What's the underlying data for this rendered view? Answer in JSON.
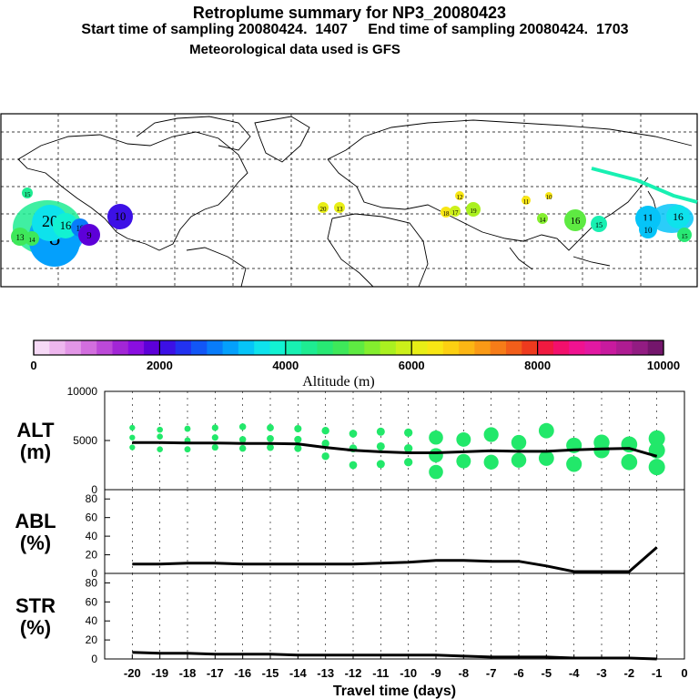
{
  "header": {
    "title": "Retroplume summary for NP3_20080423",
    "line2": "Start time of sampling 20080424.  1407     End time of sampling 20080424.  1703",
    "line3": "Meteorological data used is GFS"
  },
  "colorbar": {
    "colors": [
      "#f6d9f6",
      "#eeb6ee",
      "#e296e6",
      "#d26ede",
      "#bc49d8",
      "#a226d6",
      "#8a0ee0",
      "#5d00d8",
      "#3c10e6",
      "#2232f0",
      "#1256f6",
      "#087cfa",
      "#04a0fc",
      "#06c4f8",
      "#0ee2ec",
      "#12f2d2",
      "#18f0b2",
      "#1eec92",
      "#28e874",
      "#3ee85a",
      "#5eea42",
      "#84ee2e",
      "#aaf020",
      "#ccf01a",
      "#e8ee16",
      "#f8e614",
      "#fcd012",
      "#fcb614",
      "#fa9a16",
      "#f67c18",
      "#f25e1a",
      "#ee3a1e",
      "#f01a40",
      "#f2106c",
      "#f01290",
      "#e218a2",
      "#c81a9e",
      "#ae1c92",
      "#921c82",
      "#74166c"
    ],
    "tick_labels": [
      "0",
      "2000",
      "4000",
      "6000",
      "8000",
      "10000"
    ],
    "axis_label": "Altitude (m)"
  },
  "map": {
    "markers": [
      {
        "label": "15",
        "color": "#1eec92"
      },
      {
        "label": "8",
        "color": "#04a0fc"
      },
      {
        "label": "20",
        "color": "#0ee2ec"
      },
      {
        "label": "16",
        "color": "#12f2d2"
      },
      {
        "label": "19",
        "color": "#087cfa"
      },
      {
        "label": "9",
        "color": "#5d00d8"
      },
      {
        "label": "10",
        "color": "#3c10e6"
      },
      {
        "label": "13",
        "color": "#3ee85a"
      },
      {
        "label": "14",
        "color": "#3ee85a"
      },
      {
        "label": "20",
        "color": "#e8ee16"
      },
      {
        "label": "13",
        "color": "#e8ee16"
      },
      {
        "label": "18",
        "color": "#f8e614"
      },
      {
        "label": "17",
        "color": "#ccf01a"
      },
      {
        "label": "19",
        "color": "#aaf020"
      },
      {
        "label": "12",
        "color": "#f8e614"
      },
      {
        "label": "11",
        "color": "#f8e614"
      },
      {
        "label": "10",
        "color": "#f8e614"
      },
      {
        "label": "14",
        "color": "#84ee2e"
      },
      {
        "label": "16",
        "color": "#5eea42"
      },
      {
        "label": "15",
        "color": "#18f0b2"
      },
      {
        "label": "11",
        "color": "#06c4f8"
      },
      {
        "label": "10",
        "color": "#06c4f8"
      },
      {
        "label": "16",
        "color": "#0ee2ec"
      },
      {
        "label": "15",
        "color": "#28e874"
      }
    ]
  },
  "chart_data": [
    {
      "type": "scatter+line",
      "panel": "ALT",
      "ylabel": "ALT\n(m)",
      "ylim": [
        0,
        10000
      ],
      "yticks": [
        0,
        5000,
        10000
      ],
      "x": [
        -20,
        -19,
        -18,
        -17,
        -16,
        -15,
        -14,
        -13,
        -12,
        -11,
        -10,
        -9,
        -8,
        -7,
        -6,
        -5,
        -4,
        -3,
        -2,
        -1
      ],
      "line_values": [
        4800,
        4800,
        4750,
        4750,
        4700,
        4700,
        4650,
        4300,
        4000,
        3850,
        3750,
        3750,
        3850,
        3950,
        3900,
        3900,
        4050,
        4150,
        4200,
        3400
      ],
      "scatter": [
        {
          "x": -20,
          "y": 6300
        },
        {
          "x": -20,
          "y": 5300
        },
        {
          "x": -20,
          "y": 4300
        },
        {
          "x": -19,
          "y": 6100
        },
        {
          "x": -19,
          "y": 5400
        },
        {
          "x": -19,
          "y": 4100
        },
        {
          "x": -18,
          "y": 6200
        },
        {
          "x": -18,
          "y": 5000
        },
        {
          "x": -18,
          "y": 4100
        },
        {
          "x": -17,
          "y": 6300
        },
        {
          "x": -17,
          "y": 5300
        },
        {
          "x": -17,
          "y": 4300
        },
        {
          "x": -16,
          "y": 6400
        },
        {
          "x": -16,
          "y": 5100
        },
        {
          "x": -16,
          "y": 4200
        },
        {
          "x": -15,
          "y": 6300
        },
        {
          "x": -15,
          "y": 5200
        },
        {
          "x": -15,
          "y": 4300
        },
        {
          "x": -14,
          "y": 6200
        },
        {
          "x": -14,
          "y": 5100
        },
        {
          "x": -14,
          "y": 4200
        },
        {
          "x": -13,
          "y": 6000
        },
        {
          "x": -13,
          "y": 4700
        },
        {
          "x": -13,
          "y": 3400
        },
        {
          "x": -12,
          "y": 5700
        },
        {
          "x": -12,
          "y": 4200
        },
        {
          "x": -12,
          "y": 2500
        },
        {
          "x": -11,
          "y": 5900
        },
        {
          "x": -11,
          "y": 4400
        },
        {
          "x": -11,
          "y": 2600
        },
        {
          "x": -10,
          "y": 5800
        },
        {
          "x": -10,
          "y": 4200
        },
        {
          "x": -10,
          "y": 2800
        },
        {
          "x": -9,
          "y": 5300
        },
        {
          "x": -9,
          "y": 3500
        },
        {
          "x": -9,
          "y": 1800
        },
        {
          "x": -8,
          "y": 5100
        },
        {
          "x": -8,
          "y": 2900
        },
        {
          "x": -7,
          "y": 5600
        },
        {
          "x": -7,
          "y": 2800
        },
        {
          "x": -6,
          "y": 4800
        },
        {
          "x": -6,
          "y": 3000
        },
        {
          "x": -5,
          "y": 3200
        },
        {
          "x": -5,
          "y": 6000
        },
        {
          "x": -4,
          "y": 4500
        },
        {
          "x": -4,
          "y": 2600
        },
        {
          "x": -3,
          "y": 4800
        },
        {
          "x": -3,
          "y": 4000
        },
        {
          "x": -2,
          "y": 4600
        },
        {
          "x": -2,
          "y": 2800
        },
        {
          "x": -1,
          "y": 5200
        },
        {
          "x": -1,
          "y": 4000
        },
        {
          "x": -1,
          "y": 2300
        }
      ],
      "scatter_color": "#22e86a"
    },
    {
      "type": "line",
      "panel": "ABL",
      "ylabel": "ABL\n(%)",
      "ylim": [
        0,
        90
      ],
      "yticks": [
        0,
        20,
        40,
        60,
        80
      ],
      "x": [
        -20,
        -19,
        -18,
        -17,
        -16,
        -15,
        -14,
        -13,
        -12,
        -11,
        -10,
        -9,
        -8,
        -7,
        -6,
        -5,
        -4,
        -3,
        -2,
        -1
      ],
      "values": [
        10,
        10,
        11,
        11,
        10,
        10,
        10,
        10,
        10,
        11,
        12,
        14,
        14,
        13,
        13,
        8,
        2,
        2,
        2,
        28
      ]
    },
    {
      "type": "line",
      "panel": "STR",
      "ylabel": "STR\n(%)",
      "ylim": [
        0,
        90
      ],
      "yticks": [
        0,
        20,
        40,
        60,
        80
      ],
      "x": [
        -20,
        -19,
        -18,
        -17,
        -16,
        -15,
        -14,
        -13,
        -12,
        -11,
        -10,
        -9,
        -8,
        -7,
        -6,
        -5,
        -4,
        -3,
        -2,
        -1
      ],
      "values": [
        7,
        6,
        6,
        5,
        5,
        5,
        4,
        4,
        4,
        4,
        4,
        4,
        3,
        2,
        2,
        2,
        1,
        1,
        1,
        0
      ]
    }
  ],
  "xaxis": {
    "tick_labels": [
      "-20",
      "-19",
      "-18",
      "-17",
      "-16",
      "-15",
      "-14",
      "-13",
      "-12",
      "-11",
      "-10",
      "-9",
      "-8",
      "-7",
      "-6",
      "-5",
      "-4",
      "-3",
      "-2",
      "-1",
      "0"
    ],
    "label": "Travel time (days)"
  }
}
